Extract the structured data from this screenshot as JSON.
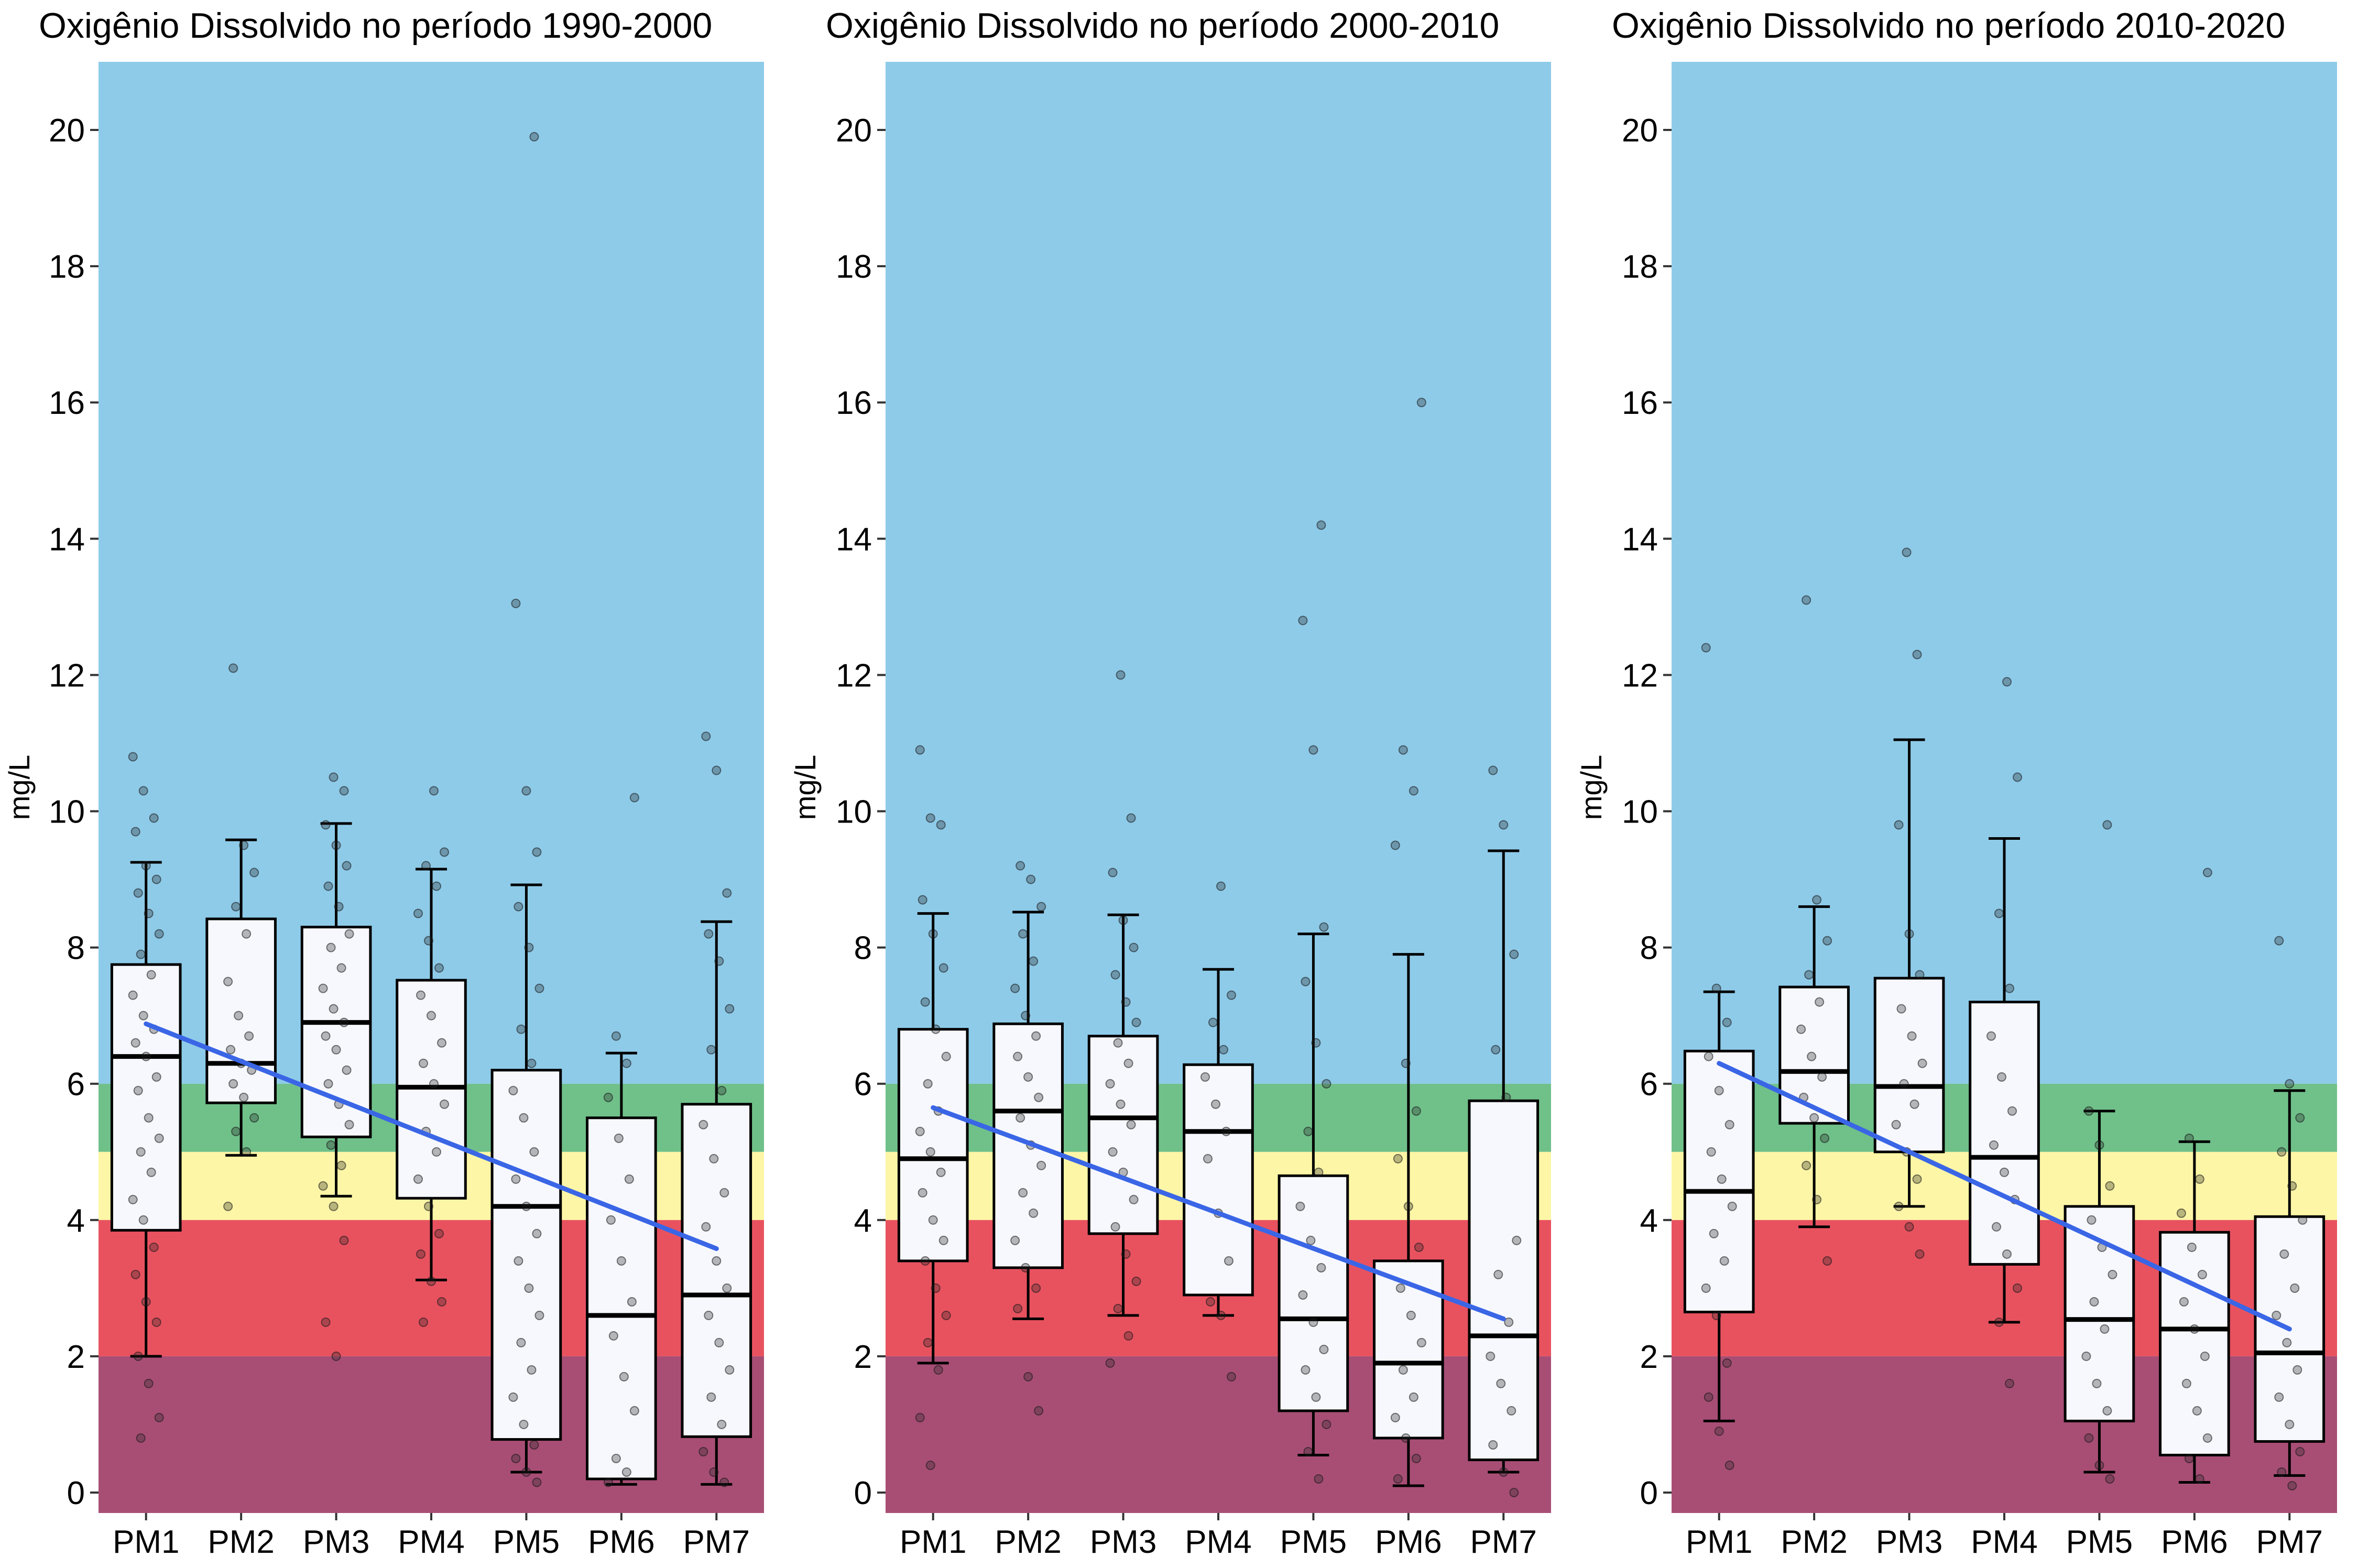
{
  "chart_data": [
    {
      "type": "boxplot",
      "title": "Oxigênio Dissolvido no período 1990-2000",
      "ylabel": "mg/L",
      "ylim": [
        -0.3,
        21
      ],
      "yticks": [
        0,
        2,
        4,
        6,
        8,
        10,
        12,
        14,
        16,
        18,
        20
      ],
      "categories": [
        "PM1",
        "PM2",
        "PM3",
        "PM4",
        "PM5",
        "PM6",
        "PM7"
      ],
      "bands": [
        {
          "from": 6,
          "to": 21,
          "color": "#8ecbe9"
        },
        {
          "from": 5,
          "to": 6,
          "color": "#70c08a"
        },
        {
          "from": 4,
          "to": 5,
          "color": "#fdf6a6"
        },
        {
          "from": 2,
          "to": 4,
          "color": "#e8525f"
        },
        {
          "from": -0.3,
          "to": 2,
          "color": "#a84e75"
        }
      ],
      "boxes": [
        {
          "q1": 3.85,
          "median": 6.4,
          "q3": 7.75,
          "whisker_low": 2.0,
          "whisker_high": 9.25
        },
        {
          "q1": 5.72,
          "median": 6.3,
          "q3": 8.42,
          "whisker_low": 4.95,
          "whisker_high": 9.58
        },
        {
          "q1": 5.22,
          "median": 6.9,
          "q3": 8.3,
          "whisker_low": 4.35,
          "whisker_high": 9.82
        },
        {
          "q1": 4.32,
          "median": 5.95,
          "q3": 7.52,
          "whisker_low": 3.12,
          "whisker_high": 9.15
        },
        {
          "q1": 0.78,
          "median": 4.2,
          "q3": 6.2,
          "whisker_low": 0.3,
          "whisker_high": 8.92
        },
        {
          "q1": 0.2,
          "median": 2.6,
          "q3": 5.5,
          "whisker_low": 0.12,
          "whisker_high": 6.45
        },
        {
          "q1": 0.82,
          "median": 2.9,
          "q3": 5.7,
          "whisker_low": 0.12,
          "whisker_high": 8.38
        }
      ],
      "trend": {
        "start": 6.88,
        "end": 3.58,
        "color": "#3a66e6"
      },
      "points": [
        [
          10.8,
          10.3,
          9.9,
          9.7,
          9.2,
          9.0,
          8.8,
          8.5,
          8.2,
          7.9,
          7.6,
          7.3,
          7.0,
          6.8,
          6.6,
          6.4,
          6.1,
          5.9,
          5.5,
          5.2,
          5.0,
          4.7,
          4.3,
          4.0,
          3.6,
          3.2,
          2.8,
          2.5,
          2.0,
          1.6,
          1.1,
          0.8
        ],
        [
          12.1,
          9.5,
          9.1,
          8.6,
          8.2,
          7.5,
          7.0,
          6.7,
          6.5,
          6.3,
          6.2,
          6.0,
          5.8,
          5.5,
          5.3,
          5.0,
          4.2
        ],
        [
          10.5,
          10.3,
          9.8,
          9.5,
          9.2,
          8.9,
          8.6,
          8.2,
          8.0,
          7.7,
          7.4,
          7.1,
          6.9,
          6.7,
          6.5,
          6.2,
          6.0,
          5.7,
          5.4,
          5.1,
          4.8,
          4.5,
          4.2,
          3.7,
          2.5,
          2.0
        ],
        [
          10.3,
          9.4,
          9.2,
          8.9,
          8.5,
          8.1,
          7.7,
          7.3,
          7.0,
          6.6,
          6.3,
          6.0,
          5.7,
          5.3,
          5.0,
          4.6,
          4.2,
          3.8,
          3.5,
          3.1,
          2.8,
          2.5
        ],
        [
          19.9,
          13.05,
          10.3,
          9.4,
          8.6,
          8.0,
          7.4,
          6.8,
          6.3,
          5.9,
          5.5,
          5.0,
          4.6,
          4.2,
          3.8,
          3.4,
          3.0,
          2.6,
          2.2,
          1.8,
          1.4,
          1.0,
          0.7,
          0.5,
          0.3,
          0.15
        ],
        [
          10.2,
          6.7,
          6.3,
          5.8,
          5.2,
          4.6,
          4.0,
          3.4,
          2.8,
          2.3,
          1.7,
          1.2,
          0.5,
          0.3,
          0.15
        ],
        [
          11.1,
          10.6,
          8.8,
          8.2,
          7.8,
          7.1,
          6.5,
          5.9,
          5.4,
          4.9,
          4.4,
          3.9,
          3.4,
          3.0,
          2.6,
          2.2,
          1.8,
          1.4,
          1.0,
          0.6,
          0.3,
          0.15
        ]
      ]
    },
    {
      "type": "boxplot",
      "title": "Oxigênio Dissolvido no período 2000-2010",
      "ylabel": "mg/L",
      "ylim": [
        -0.3,
        21
      ],
      "yticks": [
        0,
        2,
        4,
        6,
        8,
        10,
        12,
        14,
        16,
        18,
        20
      ],
      "categories": [
        "PM1",
        "PM2",
        "PM3",
        "PM4",
        "PM5",
        "PM6",
        "PM7"
      ],
      "bands": [
        {
          "from": 6,
          "to": 21,
          "color": "#8ecbe9"
        },
        {
          "from": 5,
          "to": 6,
          "color": "#70c08a"
        },
        {
          "from": 4,
          "to": 5,
          "color": "#fdf6a6"
        },
        {
          "from": 2,
          "to": 4,
          "color": "#e8525f"
        },
        {
          "from": -0.3,
          "to": 2,
          "color": "#a84e75"
        }
      ],
      "boxes": [
        {
          "q1": 3.4,
          "median": 4.9,
          "q3": 6.8,
          "whisker_low": 1.9,
          "whisker_high": 8.5
        },
        {
          "q1": 3.3,
          "median": 5.6,
          "q3": 6.88,
          "whisker_low": 2.55,
          "whisker_high": 8.52
        },
        {
          "q1": 3.8,
          "median": 5.5,
          "q3": 6.7,
          "whisker_low": 2.6,
          "whisker_high": 8.48
        },
        {
          "q1": 2.9,
          "median": 5.3,
          "q3": 6.28,
          "whisker_low": 2.6,
          "whisker_high": 7.68
        },
        {
          "q1": 1.2,
          "median": 2.55,
          "q3": 4.65,
          "whisker_low": 0.55,
          "whisker_high": 8.2
        },
        {
          "q1": 0.8,
          "median": 1.9,
          "q3": 3.4,
          "whisker_low": 0.1,
          "whisker_high": 7.9
        },
        {
          "q1": 0.48,
          "median": 2.3,
          "q3": 5.75,
          "whisker_low": 0.3,
          "whisker_high": 9.42
        }
      ],
      "trend": {
        "start": 5.65,
        "end": 2.55,
        "color": "#3a66e6"
      },
      "points": [
        [
          10.9,
          9.9,
          9.8,
          8.7,
          8.2,
          7.7,
          7.2,
          6.8,
          6.4,
          6.0,
          5.6,
          5.3,
          5.0,
          4.7,
          4.4,
          4.0,
          3.7,
          3.4,
          3.0,
          2.6,
          2.2,
          1.8,
          1.1,
          0.4
        ],
        [
          9.2,
          9.0,
          8.6,
          8.2,
          7.8,
          7.4,
          7.0,
          6.7,
          6.4,
          6.1,
          5.8,
          5.5,
          5.1,
          4.8,
          4.4,
          4.1,
          3.7,
          3.3,
          3.0,
          2.7,
          1.7,
          1.2
        ],
        [
          12.0,
          9.9,
          9.1,
          8.4,
          8.0,
          7.6,
          7.2,
          6.9,
          6.6,
          6.3,
          6.0,
          5.7,
          5.4,
          5.0,
          4.7,
          4.3,
          3.9,
          3.5,
          3.1,
          2.7,
          2.3,
          1.9
        ],
        [
          8.9,
          7.3,
          6.9,
          6.5,
          6.1,
          5.7,
          5.3,
          4.9,
          4.1,
          3.4,
          2.8,
          2.6,
          1.7
        ],
        [
          14.2,
          12.8,
          10.9,
          8.3,
          7.5,
          6.6,
          6.0,
          5.3,
          4.7,
          4.2,
          3.7,
          3.3,
          2.9,
          2.5,
          2.1,
          1.8,
          1.4,
          1.0,
          0.6,
          0.2
        ],
        [
          16.0,
          10.9,
          10.3,
          9.5,
          6.3,
          5.6,
          4.9,
          4.2,
          3.6,
          3.0,
          2.6,
          2.2,
          1.8,
          1.4,
          1.1,
          0.8,
          0.5,
          0.2
        ],
        [
          10.6,
          9.8,
          7.9,
          6.5,
          5.8,
          3.7,
          3.2,
          2.5,
          2.0,
          1.6,
          1.2,
          0.7,
          0.3,
          0.0
        ]
      ]
    },
    {
      "type": "boxplot",
      "title": "Oxigênio Dissolvido no período 2010-2020",
      "ylabel": "mg/L",
      "ylim": [
        -0.3,
        21
      ],
      "yticks": [
        0,
        2,
        4,
        6,
        8,
        10,
        12,
        14,
        16,
        18,
        20
      ],
      "categories": [
        "PM1",
        "PM2",
        "PM3",
        "PM4",
        "PM5",
        "PM6",
        "PM7"
      ],
      "bands": [
        {
          "from": 6,
          "to": 21,
          "color": "#8ecbe9"
        },
        {
          "from": 5,
          "to": 6,
          "color": "#70c08a"
        },
        {
          "from": 4,
          "to": 5,
          "color": "#fdf6a6"
        },
        {
          "from": 2,
          "to": 4,
          "color": "#e8525f"
        },
        {
          "from": -0.3,
          "to": 2,
          "color": "#a84e75"
        }
      ],
      "boxes": [
        {
          "q1": 2.65,
          "median": 4.42,
          "q3": 6.48,
          "whisker_low": 1.05,
          "whisker_high": 7.35
        },
        {
          "q1": 5.42,
          "median": 6.18,
          "q3": 7.42,
          "whisker_low": 3.9,
          "whisker_high": 8.6
        },
        {
          "q1": 5.0,
          "median": 5.96,
          "q3": 7.55,
          "whisker_low": 4.2,
          "whisker_high": 11.05
        },
        {
          "q1": 3.35,
          "median": 4.92,
          "q3": 7.2,
          "whisker_low": 2.5,
          "whisker_high": 9.6
        },
        {
          "q1": 1.05,
          "median": 2.54,
          "q3": 4.2,
          "whisker_low": 0.3,
          "whisker_high": 5.6
        },
        {
          "q1": 0.55,
          "median": 2.4,
          "q3": 3.82,
          "whisker_low": 0.15,
          "whisker_high": 5.15
        },
        {
          "q1": 0.75,
          "median": 2.05,
          "q3": 4.05,
          "whisker_low": 0.25,
          "whisker_high": 5.9
        }
      ],
      "trend": {
        "start": 6.3,
        "end": 2.4,
        "color": "#3a66e6"
      },
      "points": [
        [
          12.4,
          7.4,
          6.9,
          6.4,
          5.9,
          5.4,
          5.0,
          4.6,
          4.2,
          3.8,
          3.4,
          3.0,
          2.6,
          1.9,
          1.4,
          0.9,
          0.4
        ],
        [
          13.1,
          8.7,
          8.1,
          7.6,
          7.2,
          6.8,
          6.4,
          6.1,
          5.8,
          5.5,
          5.2,
          4.8,
          4.3,
          3.4
        ],
        [
          13.8,
          12.3,
          9.8,
          8.2,
          7.6,
          7.1,
          6.7,
          6.3,
          6.0,
          5.7,
          5.4,
          5.0,
          4.6,
          4.2,
          3.9,
          3.5
        ],
        [
          11.9,
          10.5,
          8.5,
          7.4,
          6.7,
          6.1,
          5.6,
          5.1,
          4.7,
          4.3,
          3.9,
          3.5,
          3.0,
          2.5,
          1.6
        ],
        [
          9.8,
          5.6,
          5.1,
          4.5,
          4.0,
          3.6,
          3.2,
          2.8,
          2.4,
          2.0,
          1.6,
          1.2,
          0.8,
          0.4,
          0.2
        ],
        [
          9.1,
          5.2,
          4.6,
          4.1,
          3.6,
          3.2,
          2.8,
          2.4,
          2.0,
          1.6,
          1.2,
          0.8,
          0.5,
          0.2
        ],
        [
          8.1,
          6.0,
          5.5,
          5.0,
          4.5,
          4.0,
          3.5,
          3.0,
          2.6,
          2.2,
          1.8,
          1.4,
          1.0,
          0.6,
          0.3,
          0.1
        ]
      ]
    }
  ]
}
